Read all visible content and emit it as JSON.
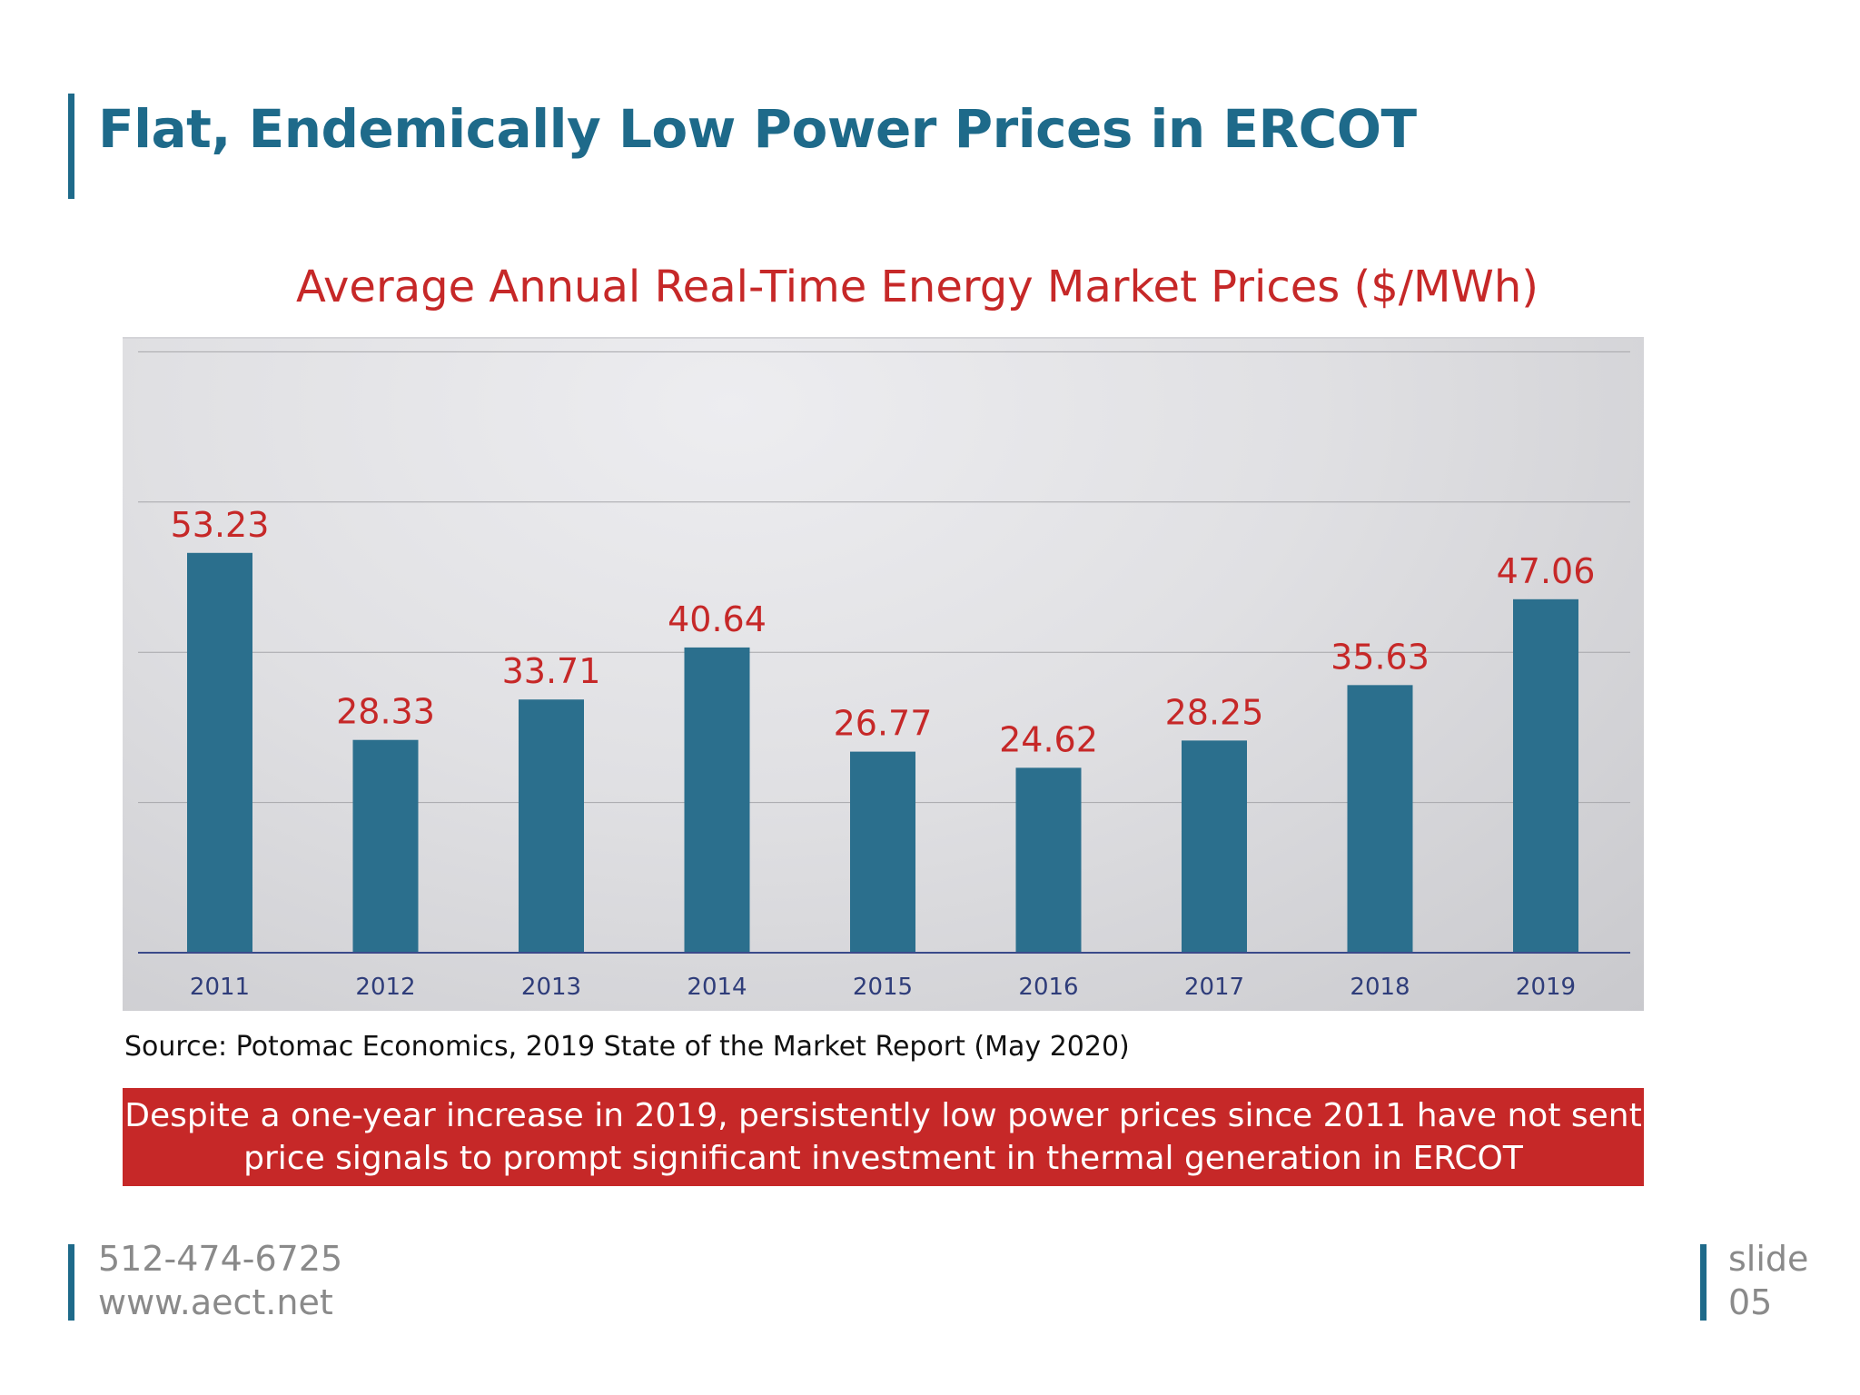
{
  "slide": {
    "title": "Flat, Endemically Low Power Prices in ERCOT",
    "source": "Source: Potomac Economics, 2019 State of the Market Report (May 2020)",
    "callout": {
      "line1": "Despite a one-year increase in 2019, persistently low power prices since 2011 have not sent",
      "line2": "price signals to prompt significant investment in thermal generation in ERCOT"
    },
    "footer": {
      "phone": "512-474-6725",
      "website": "www.aect.net",
      "slide_label": "slide",
      "slide_number": "05"
    }
  },
  "chart_data": {
    "type": "bar",
    "title": "Average Annual Real-Time Energy Market Prices ($/MWh)",
    "xlabel": "",
    "ylabel": "",
    "categories": [
      "2011",
      "2012",
      "2013",
      "2014",
      "2015",
      "2016",
      "2017",
      "2018",
      "2019"
    ],
    "values": [
      53.23,
      28.33,
      33.71,
      40.64,
      26.77,
      24.62,
      28.25,
      35.63,
      47.06
    ],
    "ylim": [
      0,
      80
    ],
    "gridlines": [
      20,
      40,
      60,
      80
    ],
    "grid": true,
    "legend": "none",
    "colors": {
      "bar": "#2b6f8d",
      "data_label": "#c62828",
      "tick_label": "#2f3d7a",
      "axis": "#3a4a8a",
      "grid": "#a6a6aa"
    }
  }
}
